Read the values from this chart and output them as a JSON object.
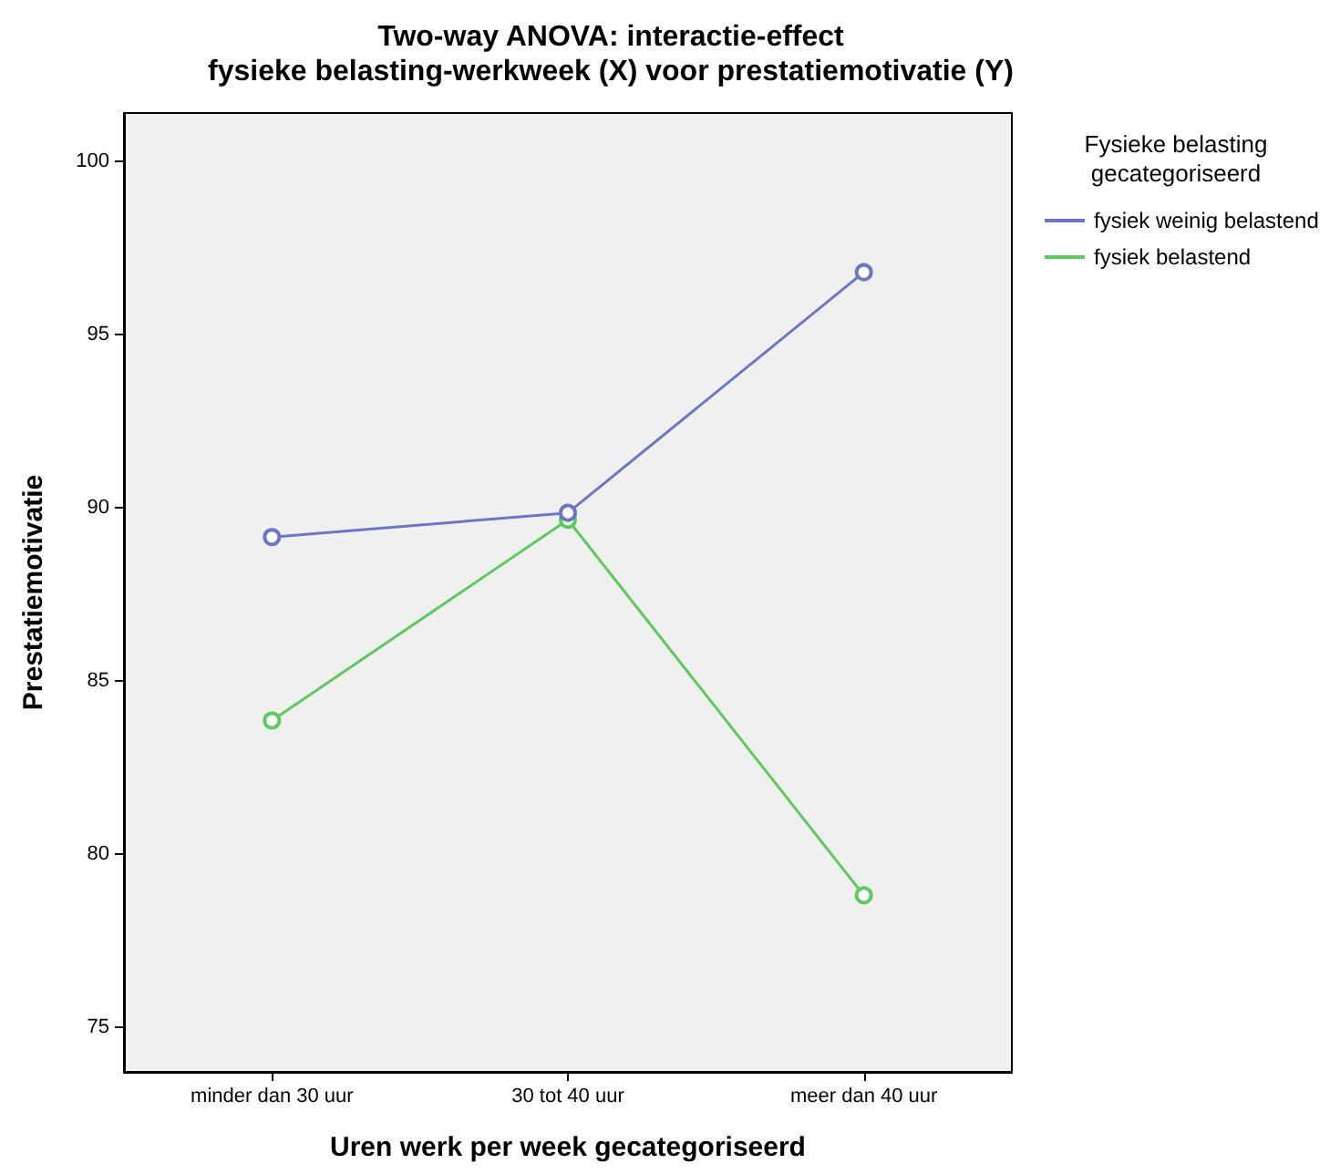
{
  "chart_data": {
    "type": "line",
    "title": "Two-way ANOVA: interactie-effect\nfysieke belasting-werkweek (X) voor prestatiemotivatie (Y)",
    "xlabel": "Uren werk per week gecategoriseerd",
    "ylabel": "Prestatiemotivatie",
    "legend_title": "Fysieke belasting\ngecategoriseerd",
    "categories": [
      "minder dan 30 uur",
      "30 tot 40 uur",
      "meer dan 40 uur"
    ],
    "series": [
      {
        "name": "fysiek weinig belastend",
        "color": "#6b76c9",
        "values": [
          89.15,
          89.85,
          96.8
        ]
      },
      {
        "name": "fysiek belastend",
        "color": "#5ccb5c",
        "values": [
          83.85,
          89.65,
          78.8
        ]
      }
    ],
    "ylim": [
      73.7,
      101.4
    ],
    "yticks": [
      75,
      80,
      85,
      90,
      95,
      100
    ],
    "grid": false,
    "legend": "top right",
    "marker": "circle",
    "line_style": "solid"
  }
}
